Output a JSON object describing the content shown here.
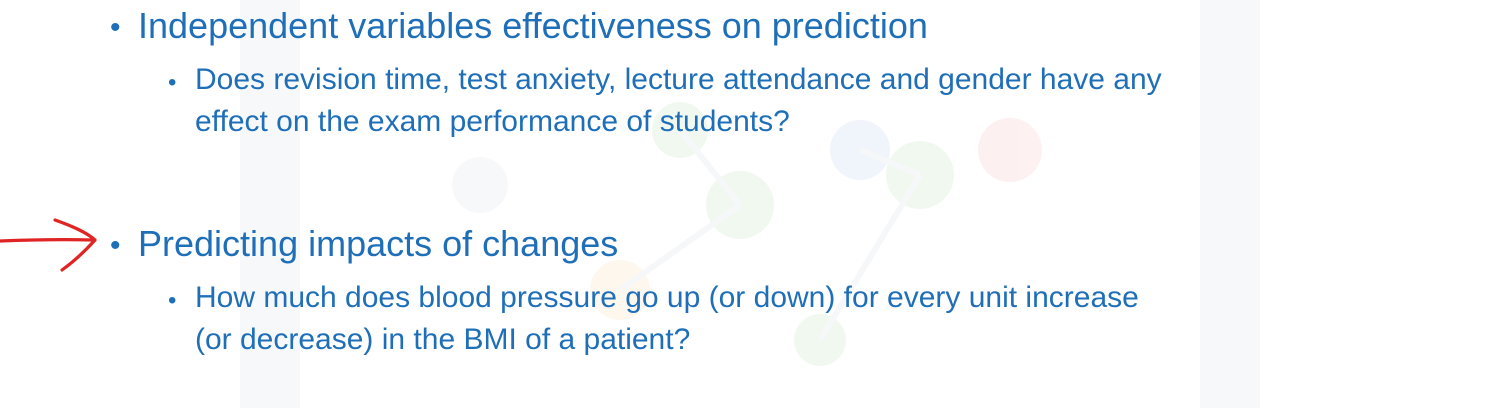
{
  "slide": {
    "bullets": [
      {
        "text": "Independent variables effectiveness on prediction",
        "sub": [
          "Does revision time, test anxiety, lecture attendance and gender have any",
          "effect on the exam performance of students?"
        ]
      },
      {
        "text": "Predicting impacts of changes",
        "sub": [
          "How much does blood pressure go up (or down) for every unit increase",
          "(or decrease) in the BMI of a patient?"
        ]
      }
    ]
  },
  "colors": {
    "text": "#1f6fb8",
    "annotation_arrow": "#e02424"
  },
  "icons": {
    "annotation": "hand-drawn-arrow-icon"
  }
}
